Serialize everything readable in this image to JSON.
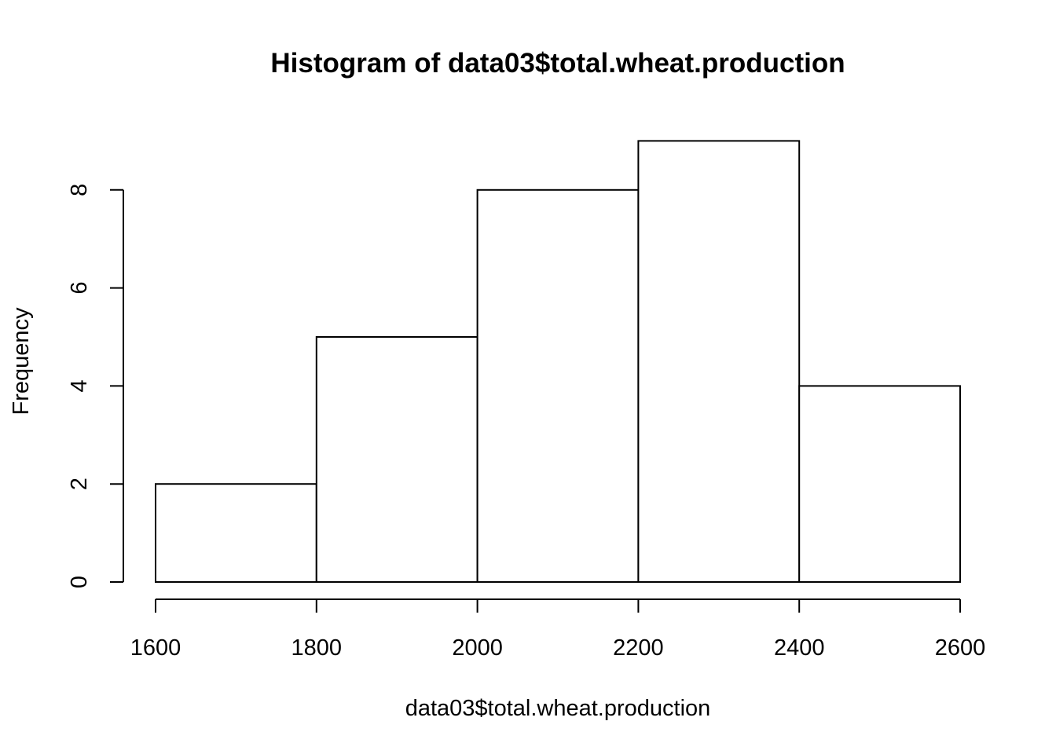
{
  "chart_data": {
    "type": "bar",
    "subtype": "histogram",
    "title": "Histogram of data03$total.wheat.production",
    "xlabel": "data03$total.wheat.production",
    "ylabel": "Frequency",
    "bins": [
      {
        "from": 1600,
        "to": 1800,
        "count": 2
      },
      {
        "from": 1800,
        "to": 2000,
        "count": 5
      },
      {
        "from": 2000,
        "to": 2200,
        "count": 8
      },
      {
        "from": 2200,
        "to": 2400,
        "count": 9
      },
      {
        "from": 2400,
        "to": 2600,
        "count": 4
      }
    ],
    "xlim": [
      1600,
      2600
    ],
    "ylim": [
      0,
      9
    ],
    "x_ticks": [
      "1600",
      "1800",
      "2000",
      "2200",
      "2400",
      "2600"
    ],
    "y_ticks": [
      "0",
      "2",
      "4",
      "6",
      "8"
    ],
    "grid": false,
    "legend": "none",
    "colors": {
      "bar_fill": "#ffffff",
      "bar_stroke": "#000000",
      "background": "#ffffff"
    }
  }
}
